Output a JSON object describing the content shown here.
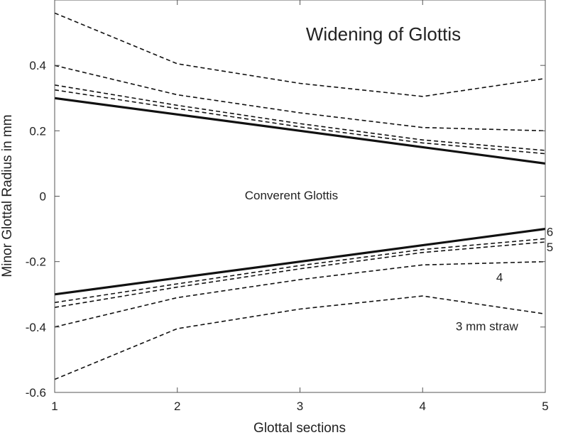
{
  "chart_data": {
    "type": "line",
    "title": "Widening of Glottis",
    "xlabel": "Glottal sections",
    "ylabel": "Minor Glottal Radius in mm",
    "xlim": [
      1,
      5
    ],
    "ylim": [
      -0.6,
      0.6
    ],
    "x_ticks": [
      1,
      2,
      3,
      4,
      5
    ],
    "x_tick_labels": [
      "1",
      "2",
      "3",
      "4",
      "5"
    ],
    "y_ticks": [
      -0.6,
      -0.4,
      -0.2,
      0,
      0.2,
      0.4
    ],
    "y_tick_labels": [
      "-0.6",
      "-0.4",
      "-0.2",
      "0",
      "0.2",
      "0.4"
    ],
    "grid": false,
    "x": [
      1,
      2,
      3,
      4,
      5
    ],
    "series": [
      {
        "style": "solid",
        "values": [
          0.3,
          0.25,
          0.2,
          0.15,
          0.1
        ]
      },
      {
        "style": "solid",
        "values": [
          -0.3,
          -0.25,
          -0.2,
          -0.15,
          -0.1
        ]
      },
      {
        "style": "dashed",
        "values": [
          0.56,
          0.405,
          0.345,
          0.305,
          0.36
        ]
      },
      {
        "style": "dashed",
        "values": [
          -0.56,
          -0.405,
          -0.345,
          -0.305,
          -0.36
        ]
      },
      {
        "style": "dashed",
        "values": [
          0.4,
          0.31,
          0.255,
          0.21,
          0.2
        ]
      },
      {
        "style": "dashed",
        "values": [
          -0.4,
          -0.31,
          -0.255,
          -0.21,
          -0.2
        ]
      },
      {
        "style": "dashed",
        "values": [
          0.34,
          0.278,
          0.222,
          0.172,
          0.14
        ]
      },
      {
        "style": "dashed",
        "values": [
          -0.34,
          -0.278,
          -0.222,
          -0.172,
          -0.14
        ]
      },
      {
        "style": "dashed",
        "values": [
          0.325,
          0.268,
          0.212,
          0.163,
          0.13
        ]
      },
      {
        "style": "dashed",
        "values": [
          -0.325,
          -0.268,
          -0.212,
          -0.163,
          -0.13
        ]
      }
    ],
    "annotations": [
      {
        "text": "Converent Glottis",
        "x": 2.55,
        "y": -0.01
      },
      {
        "text": "6",
        "x": 5.01,
        "y": -0.122
      },
      {
        "text": "5",
        "x": 5.01,
        "y": -0.168
      },
      {
        "text": "4",
        "x": 4.6,
        "y": -0.26
      },
      {
        "text": "3 mm straw",
        "x": 4.27,
        "y": -0.41
      }
    ]
  }
}
